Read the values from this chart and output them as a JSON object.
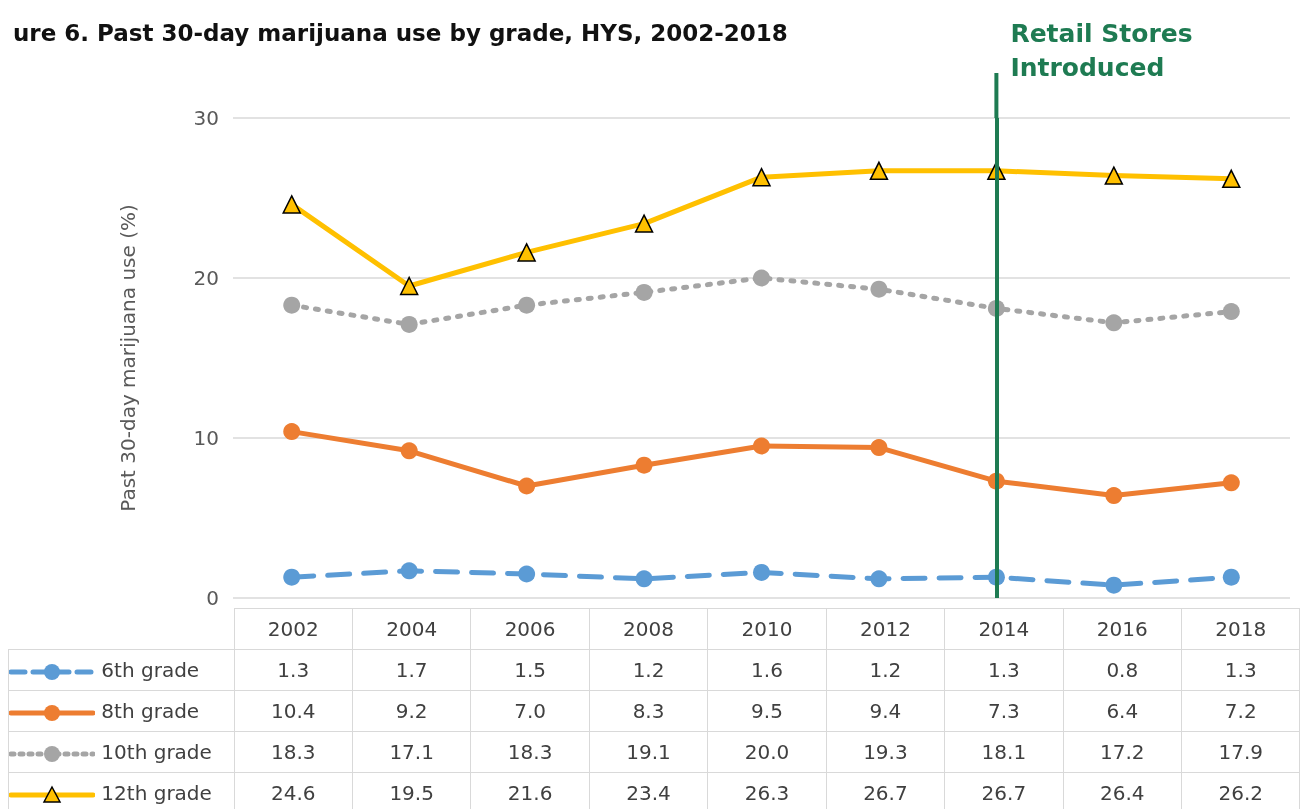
{
  "chart_data": {
    "type": "line",
    "title": "ure 6. Past 30-day marijuana use by grade, HYS, 2002-2018",
    "ylabel": "Past 30-day marijuana use (%)",
    "categories": [
      "2002",
      "2004",
      "2006",
      "2008",
      "2010",
      "2012",
      "2014",
      "2016",
      "2018"
    ],
    "series": [
      {
        "name": "6th grade",
        "color": "#5b9bd5",
        "marker": "circle",
        "line_style": "dashed",
        "values": [
          1.3,
          1.7,
          1.5,
          1.2,
          1.6,
          1.2,
          1.3,
          0.8,
          1.3
        ],
        "value_labels": [
          "1.3",
          "1.7",
          "1.5",
          "1.2",
          "1.6",
          "1.2",
          "1.3",
          "0.8",
          "1.3"
        ]
      },
      {
        "name": "8th grade",
        "color": "#ed7d31",
        "marker": "circle",
        "line_style": "solid",
        "values": [
          10.4,
          9.2,
          7.0,
          8.3,
          9.5,
          9.4,
          7.3,
          6.4,
          7.2
        ],
        "value_labels": [
          "10.4",
          "9.2",
          "7.0",
          "8.3",
          "9.5",
          "9.4",
          "7.3",
          "6.4",
          "7.2"
        ]
      },
      {
        "name": "10th grade",
        "color": "#a5a5a5",
        "marker": "circle",
        "line_style": "dotted",
        "values": [
          18.3,
          17.1,
          18.3,
          19.1,
          20.0,
          19.3,
          18.1,
          17.2,
          17.9
        ],
        "value_labels": [
          "18.3",
          "17.1",
          "18.3",
          "19.1",
          "20.0",
          "19.3",
          "18.1",
          "17.2",
          "17.9"
        ]
      },
      {
        "name": "12th grade",
        "color": "#ffc000",
        "marker": "triangle",
        "line_style": "solid",
        "values": [
          24.6,
          19.5,
          21.6,
          23.4,
          26.3,
          26.7,
          26.7,
          26.4,
          26.2
        ],
        "value_labels": [
          "24.6",
          "19.5",
          "21.6",
          "23.4",
          "26.3",
          "26.7",
          "26.7",
          "26.4",
          "26.2"
        ]
      }
    ],
    "ylim": [
      0,
      30
    ],
    "yticks": [
      0,
      10,
      20,
      30
    ],
    "grid": "y",
    "legend": "bottom",
    "ref_lines": [
      {
        "axis": "x",
        "value": "2014",
        "label": "Retail Stores Introduced",
        "color": "#1e7b52"
      }
    ]
  }
}
